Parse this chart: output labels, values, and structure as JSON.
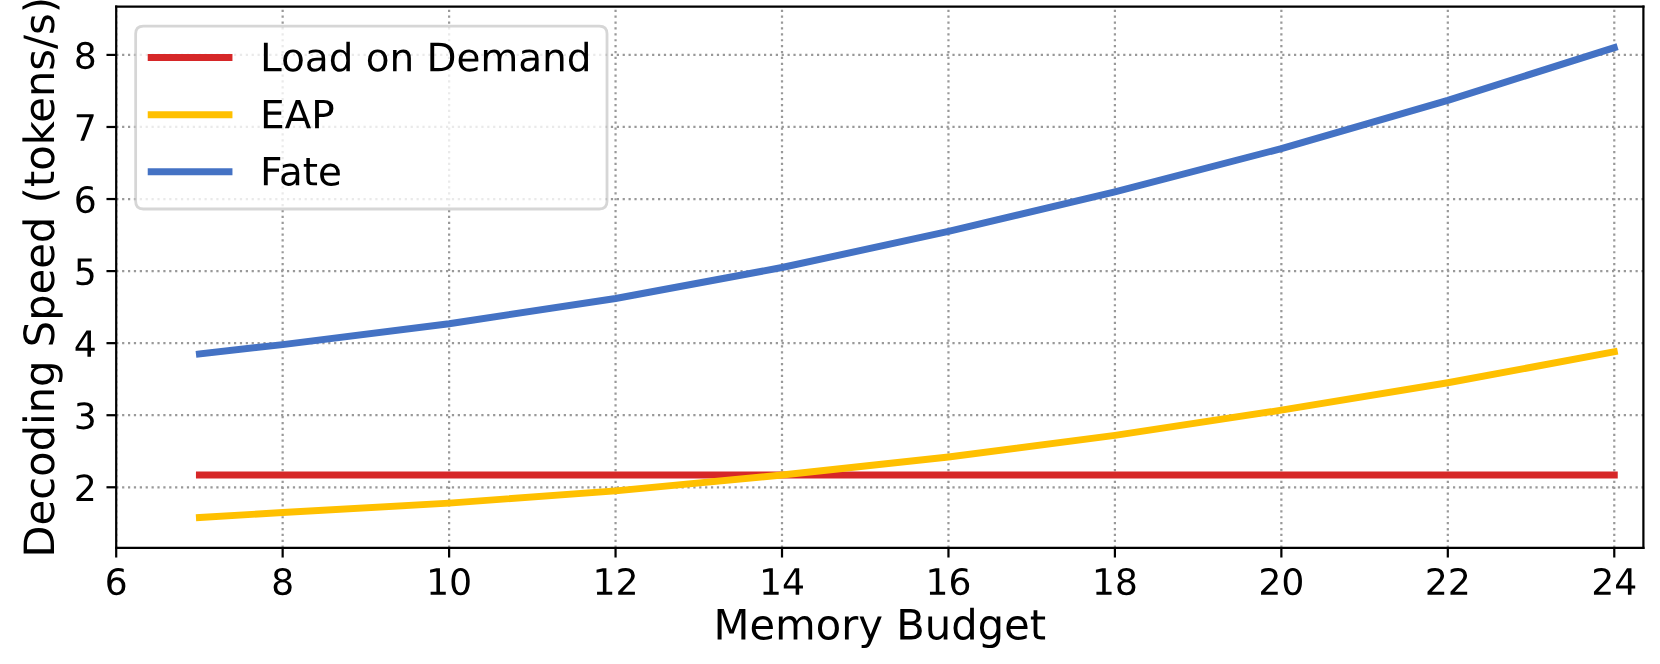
{
  "chart_data": {
    "type": "line",
    "xlabel": "Memory Budget",
    "ylabel": "Decoding Speed (tokens/s)",
    "x": [
      7,
      8,
      10,
      12,
      14,
      16,
      18,
      20,
      22,
      24
    ],
    "series": [
      {
        "name": "Load on Demand",
        "color": "#d62728",
        "values": [
          2.17,
          2.17,
          2.17,
          2.17,
          2.17,
          2.17,
          2.17,
          2.17,
          2.17,
          2.17
        ]
      },
      {
        "name": "EAP",
        "color": "#ffc000",
        "values": [
          1.58,
          1.65,
          1.78,
          1.95,
          2.17,
          2.42,
          2.72,
          3.07,
          3.45,
          3.88
        ]
      },
      {
        "name": "Fate",
        "color": "#4472c4",
        "values": [
          3.85,
          3.98,
          4.27,
          4.62,
          5.05,
          5.55,
          6.1,
          6.7,
          7.37,
          8.1
        ]
      }
    ],
    "xlim": [
      6,
      24.35
    ],
    "ylim": [
      1.16,
      8.67
    ],
    "xticks": [
      6,
      8,
      10,
      12,
      14,
      16,
      18,
      20,
      22,
      24
    ],
    "yticks": [
      2,
      3,
      4,
      5,
      6,
      7,
      8
    ],
    "grid": true,
    "legend": "top left",
    "marker": "none",
    "line_style": "solid"
  }
}
